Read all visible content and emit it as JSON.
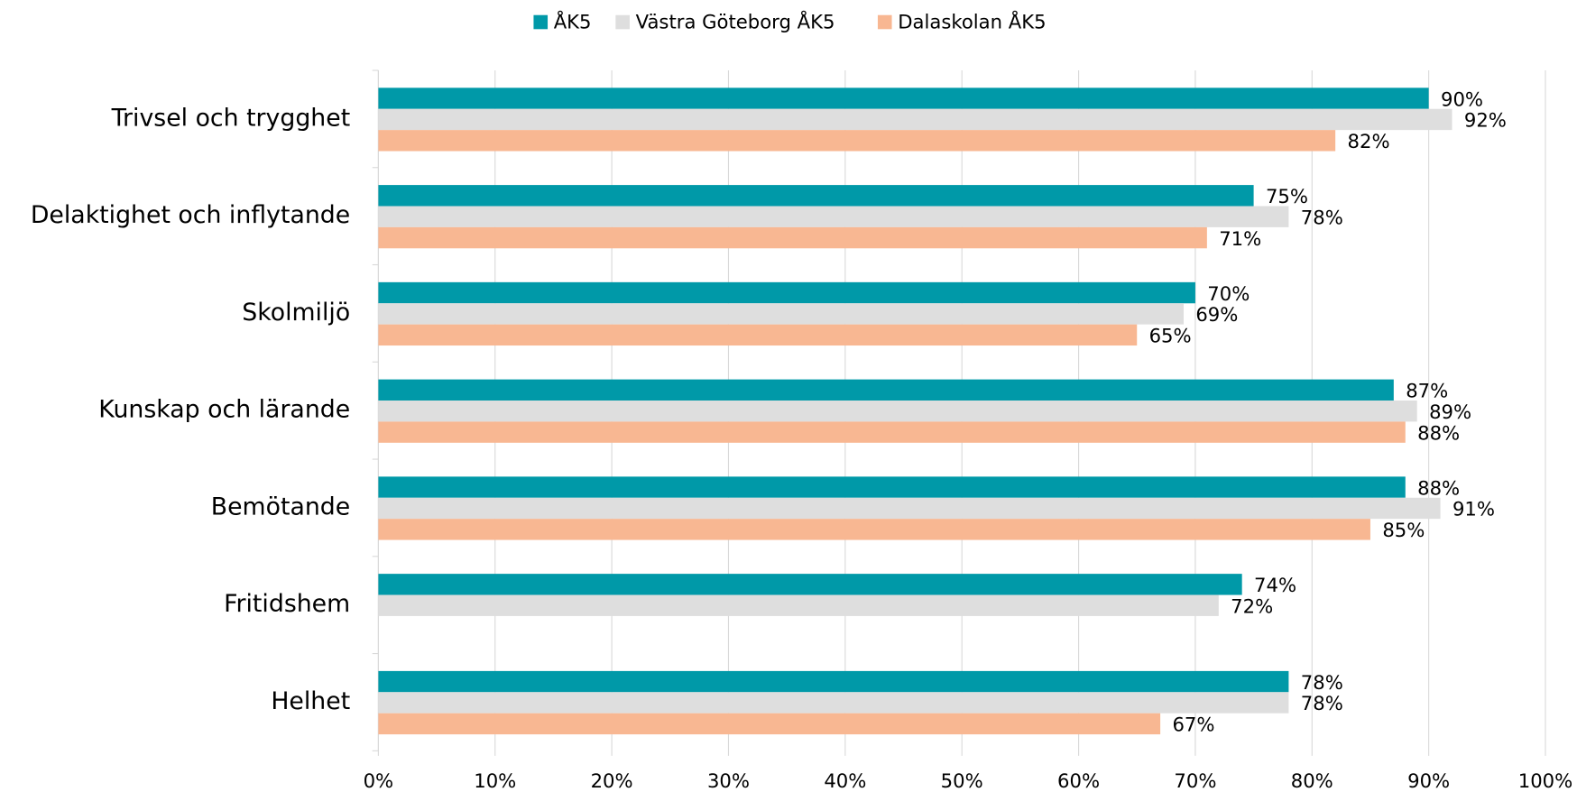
{
  "chart_data": {
    "type": "hbar",
    "categories": [
      "Trivsel och trygghet",
      "Delaktighet och inflytande",
      "Skolmiljö",
      "Kunskap och lärande",
      "Bemötande",
      "Fritidshem",
      "Helhet"
    ],
    "series": [
      {
        "name": "ÅK5",
        "color": "#0099a8",
        "values": [
          90,
          75,
          70,
          87,
          88,
          74,
          78
        ],
        "value_labels": [
          "90%",
          "75%",
          "70%",
          "87%",
          "88%",
          "74%",
          "78%"
        ]
      },
      {
        "name": "Västra Göteborg ÅK5",
        "color": "#dedede",
        "values": [
          92,
          78,
          69,
          89,
          91,
          72,
          78
        ],
        "value_labels": [
          "92%",
          "78%",
          "69%",
          "89%",
          "91%",
          "72%",
          "78%"
        ]
      },
      {
        "name": "Dalaskolan ÅK5",
        "color": "#f8b792",
        "values": [
          82,
          71,
          65,
          88,
          85,
          null,
          67
        ],
        "value_labels": [
          "82%",
          "71%",
          "65%",
          "88%",
          "85%",
          null,
          "67%"
        ]
      }
    ],
    "xlim": [
      0,
      100
    ],
    "xticks": [
      {
        "value": 0,
        "label": "0%"
      },
      {
        "value": 10,
        "label": "10%"
      },
      {
        "value": 20,
        "label": "20%"
      },
      {
        "value": 30,
        "label": "30%"
      },
      {
        "value": 40,
        "label": "40%"
      },
      {
        "value": 50,
        "label": "50%"
      },
      {
        "value": 60,
        "label": "60%"
      },
      {
        "value": 70,
        "label": "70%"
      },
      {
        "value": 80,
        "label": "80%"
      },
      {
        "value": 90,
        "label": "90%"
      },
      {
        "value": 100,
        "label": "100%"
      }
    ],
    "grid": true,
    "legend": "top"
  }
}
